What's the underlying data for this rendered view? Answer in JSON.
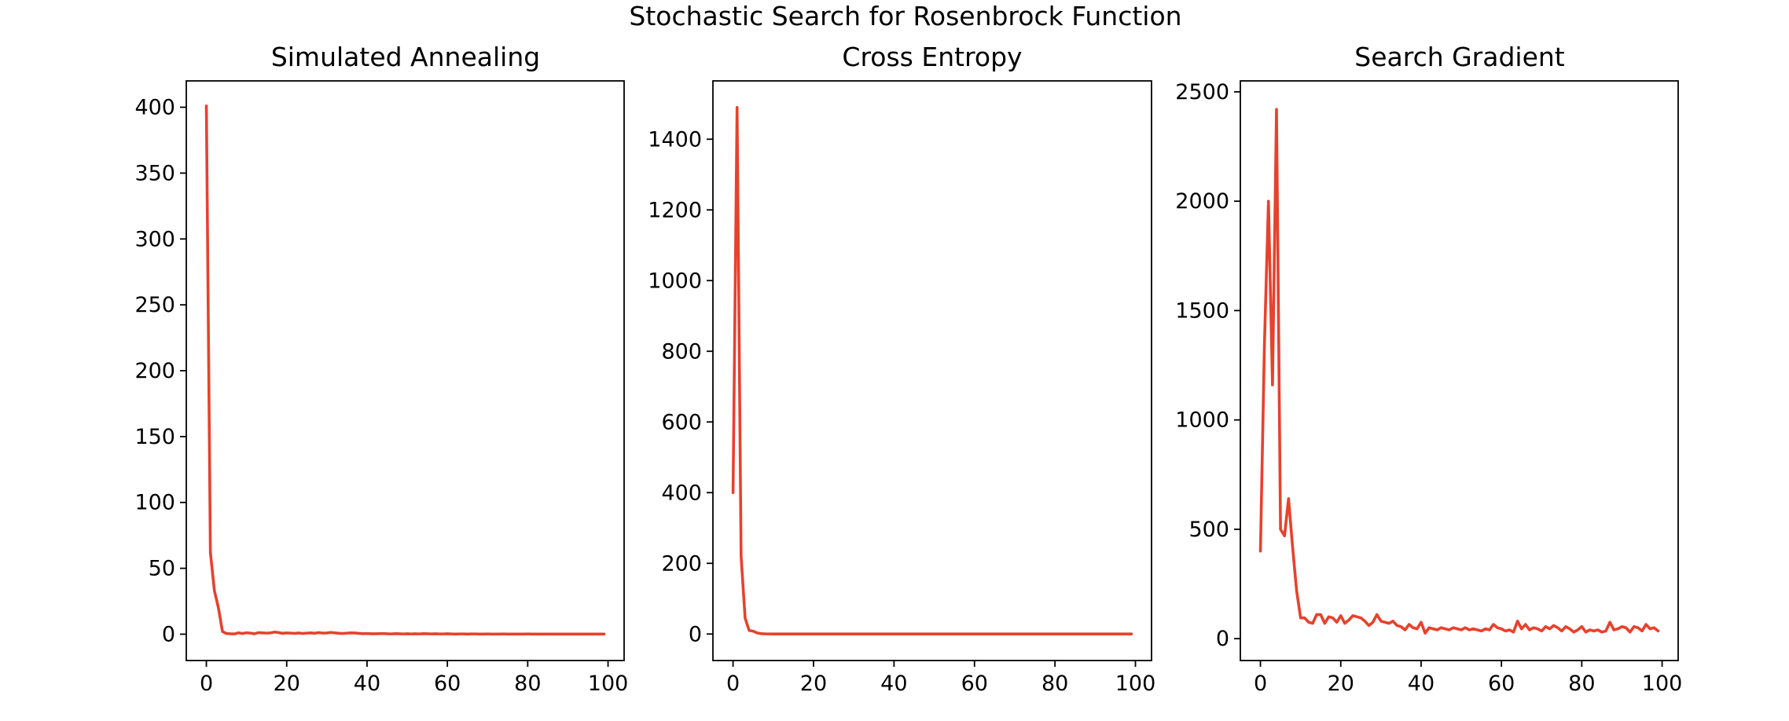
{
  "figure": {
    "title": "Stochastic Search for Rosenbrock Function",
    "line_color": "#e8412c"
  },
  "chart_data": [
    {
      "type": "line",
      "title": "Simulated Annealing",
      "xlabel": "",
      "ylabel": "",
      "xlim": [
        -5,
        104
      ],
      "ylim": [
        -20,
        420
      ],
      "xticks": [
        0,
        20,
        40,
        60,
        80,
        100
      ],
      "yticks": [
        0,
        50,
        100,
        150,
        200,
        250,
        300,
        350,
        400
      ],
      "grid": false,
      "x": [
        0,
        1,
        2,
        3,
        4,
        5,
        6,
        7,
        8,
        9,
        10,
        11,
        12,
        13,
        14,
        15,
        16,
        17,
        18,
        19,
        20,
        21,
        22,
        23,
        24,
        25,
        26,
        27,
        28,
        29,
        30,
        31,
        32,
        33,
        34,
        35,
        36,
        37,
        38,
        39,
        40,
        41,
        42,
        43,
        44,
        45,
        46,
        47,
        48,
        49,
        50,
        51,
        52,
        53,
        54,
        55,
        56,
        57,
        58,
        59,
        60,
        61,
        62,
        63,
        64,
        65,
        66,
        67,
        68,
        69,
        70,
        71,
        72,
        73,
        74,
        75,
        76,
        77,
        78,
        79,
        80,
        81,
        82,
        83,
        84,
        85,
        86,
        87,
        88,
        89,
        90,
        91,
        92,
        93,
        94,
        95,
        96,
        97,
        98,
        99
      ],
      "y": [
        401,
        62,
        33,
        20,
        2,
        0.5,
        0.3,
        0.2,
        1,
        0.5,
        1.1,
        0.8,
        0.3,
        1.2,
        1,
        0.8,
        1,
        1.6,
        1.2,
        0.6,
        1,
        0.8,
        0.6,
        0.9,
        0.5,
        0.8,
        1,
        0.7,
        1.2,
        0.8,
        0.9,
        1.3,
        1,
        0.7,
        0.5,
        0.8,
        1,
        0.9,
        0.6,
        0.4,
        0.5,
        0.3,
        0.3,
        0.4,
        0.5,
        0.3,
        0.2,
        0.4,
        0.3,
        0.2,
        0.3,
        0.2,
        0.3,
        0.2,
        0.4,
        0.3,
        0.2,
        0.3,
        0.2,
        0.2,
        0.3,
        0.2,
        0.1,
        0.2,
        0.2,
        0.1,
        0.2,
        0.2,
        0.1,
        0.1,
        0.2,
        0.1,
        0.1,
        0.1,
        0.2,
        0.1,
        0.1,
        0.1,
        0.1,
        0.1,
        0.2,
        0.1,
        0.1,
        0.1,
        0.1,
        0.1,
        0.1,
        0.1,
        0.1,
        0.1,
        0.1,
        0.1,
        0.1,
        0.1,
        0.1,
        0.1,
        0.1,
        0.1,
        0.1,
        0.1
      ]
    },
    {
      "type": "line",
      "title": "Cross Entropy",
      "xlabel": "",
      "ylabel": "",
      "xlim": [
        -5,
        104
      ],
      "ylim": [
        -75,
        1565
      ],
      "xticks": [
        0,
        20,
        40,
        60,
        80,
        100
      ],
      "yticks": [
        0,
        200,
        400,
        600,
        800,
        1000,
        1200,
        1400
      ],
      "grid": false,
      "x": [
        0,
        1,
        2,
        3,
        4,
        5,
        6,
        7,
        8,
        9,
        10,
        11,
        12,
        13,
        14,
        15,
        16,
        17,
        18,
        19,
        20,
        21,
        22,
        23,
        24,
        25,
        26,
        27,
        28,
        29,
        30,
        31,
        32,
        33,
        34,
        35,
        36,
        37,
        38,
        39,
        40,
        41,
        42,
        43,
        44,
        45,
        46,
        47,
        48,
        49,
        50,
        51,
        52,
        53,
        54,
        55,
        56,
        57,
        58,
        59,
        60,
        61,
        62,
        63,
        64,
        65,
        66,
        67,
        68,
        69,
        70,
        71,
        72,
        73,
        74,
        75,
        76,
        77,
        78,
        79,
        80,
        81,
        82,
        83,
        84,
        85,
        86,
        87,
        88,
        89,
        90,
        91,
        92,
        93,
        94,
        95,
        96,
        97,
        98,
        99
      ],
      "y": [
        400,
        1490,
        220,
        45,
        10,
        8,
        3,
        1,
        0.5,
        0.3,
        0.2,
        0.1,
        0.1,
        0.1,
        0.1,
        0.1,
        0.1,
        0.1,
        0.1,
        0.1,
        0.1,
        0.1,
        0.1,
        0.1,
        0.1,
        0.1,
        0.1,
        0.1,
        0.1,
        0.1,
        0.1,
        0.1,
        0.1,
        0.1,
        0.1,
        0.1,
        0.1,
        0.1,
        0.1,
        0.1,
        0.1,
        0.1,
        0.1,
        0.1,
        0.1,
        0.1,
        0.1,
        0.1,
        0.1,
        0.1,
        0.1,
        0.1,
        0.1,
        0.1,
        0.1,
        0.1,
        0.1,
        0.1,
        0.1,
        0.1,
        0.1,
        0.1,
        0.1,
        0.1,
        0.1,
        0.1,
        0.1,
        0.1,
        0.1,
        0.1,
        0.1,
        0.1,
        0.1,
        0.1,
        0.1,
        0.1,
        0.1,
        0.1,
        0.1,
        0.1,
        0.1,
        0.1,
        0.1,
        0.1,
        0.1,
        0.1,
        0.1,
        0.1,
        0.1,
        0.1,
        0.1,
        0.1,
        0.1,
        0.1,
        0.1,
        0.1,
        0.1,
        0.1,
        0.1,
        0.1
      ]
    },
    {
      "type": "line",
      "title": "Search Gradient",
      "xlabel": "",
      "ylabel": "",
      "xlim": [
        -5,
        104
      ],
      "ylim": [
        -100,
        2550
      ],
      "xticks": [
        0,
        20,
        40,
        60,
        80,
        100
      ],
      "yticks": [
        0,
        500,
        1000,
        1500,
        2000,
        2500
      ],
      "grid": false,
      "x": [
        0,
        1,
        2,
        3,
        4,
        5,
        6,
        7,
        8,
        9,
        10,
        11,
        12,
        13,
        14,
        15,
        16,
        17,
        18,
        19,
        20,
        21,
        22,
        23,
        24,
        25,
        26,
        27,
        28,
        29,
        30,
        31,
        32,
        33,
        34,
        35,
        36,
        37,
        38,
        39,
        40,
        41,
        42,
        43,
        44,
        45,
        46,
        47,
        48,
        49,
        50,
        51,
        52,
        53,
        54,
        55,
        56,
        57,
        58,
        59,
        60,
        61,
        62,
        63,
        64,
        65,
        66,
        67,
        68,
        69,
        70,
        71,
        72,
        73,
        74,
        75,
        76,
        77,
        78,
        79,
        80,
        81,
        82,
        83,
        84,
        85,
        86,
        87,
        88,
        89,
        90,
        91,
        92,
        93,
        94,
        95,
        96,
        97,
        98,
        99
      ],
      "y": [
        400,
        1350,
        2000,
        1160,
        2420,
        500,
        470,
        640,
        420,
        220,
        95,
        95,
        75,
        70,
        110,
        110,
        70,
        100,
        95,
        75,
        105,
        70,
        85,
        105,
        100,
        95,
        80,
        60,
        75,
        110,
        80,
        75,
        70,
        80,
        60,
        55,
        40,
        65,
        50,
        45,
        75,
        25,
        50,
        45,
        40,
        50,
        45,
        40,
        50,
        45,
        40,
        50,
        40,
        45,
        40,
        35,
        45,
        40,
        65,
        50,
        45,
        35,
        40,
        30,
        80,
        45,
        65,
        40,
        50,
        45,
        35,
        55,
        45,
        60,
        50,
        35,
        55,
        45,
        30,
        40,
        55,
        30,
        40,
        35,
        40,
        30,
        35,
        75,
        40,
        45,
        55,
        50,
        30,
        55,
        50,
        35,
        65,
        45,
        50,
        35
      ]
    }
  ]
}
